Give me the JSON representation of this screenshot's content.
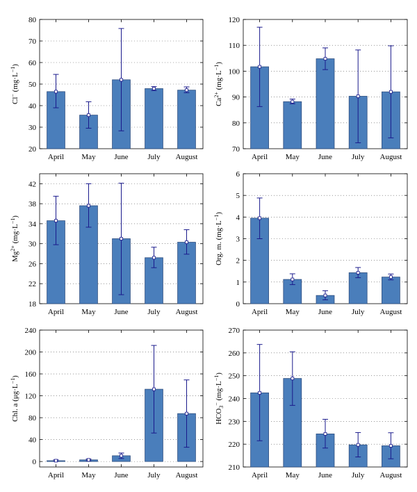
{
  "chart_data": [
    {
      "type": "bar",
      "id": "cl",
      "categories": [
        "April",
        "May",
        "June",
        "July",
        "August"
      ],
      "values": [
        46.5,
        35.6,
        52.0,
        47.9,
        47.2
      ],
      "errors": [
        [
          39.0,
          54.5
        ],
        [
          29.5,
          41.8
        ],
        [
          28.3,
          75.8
        ],
        [
          47.0,
          48.8
        ],
        [
          46.0,
          48.7
        ]
      ],
      "ylabel": "Cl⁻ (mg·L⁻¹)",
      "ylabel_parts": [
        [
          "Cl",
          ""
        ],
        [
          "−",
          "sup"
        ],
        [
          " (mg·L",
          ""
        ],
        [
          "−1",
          "sup"
        ],
        [
          ")",
          ""
        ]
      ],
      "ylim": [
        20,
        80
      ],
      "yticks": [
        20,
        30,
        40,
        50,
        60,
        70,
        80
      ],
      "grid": true,
      "color": "#4a7ebb"
    },
    {
      "type": "bar",
      "id": "ca",
      "categories": [
        "April",
        "May",
        "June",
        "July",
        "August"
      ],
      "values": [
        101.7,
        88.2,
        104.8,
        90.3,
        92.0
      ],
      "errors": [
        [
          86.3,
          117.0
        ],
        [
          87.4,
          89.2
        ],
        [
          100.6,
          109.0
        ],
        [
          72.3,
          108.2
        ],
        [
          74.2,
          109.8
        ]
      ],
      "ylabel": "Ca²⁺ (mg·L⁻¹)",
      "ylabel_parts": [
        [
          "Ca",
          ""
        ],
        [
          "2+",
          "sup"
        ],
        [
          " (mg·L",
          ""
        ],
        [
          "−1",
          "sup"
        ],
        [
          ")",
          ""
        ]
      ],
      "ylim": [
        70,
        120
      ],
      "yticks": [
        70,
        80,
        90,
        100,
        110,
        120
      ],
      "grid": true,
      "color": "#4a7ebb"
    },
    {
      "type": "bar",
      "id": "mg",
      "categories": [
        "April",
        "May",
        "June",
        "July",
        "August"
      ],
      "values": [
        34.6,
        37.6,
        31.0,
        27.2,
        30.3
      ],
      "errors": [
        [
          29.8,
          39.5
        ],
        [
          33.3,
          42.0
        ],
        [
          19.8,
          42.1
        ],
        [
          25.2,
          29.3
        ],
        [
          27.9,
          32.8
        ]
      ],
      "ylabel": "Mg²⁺ (mg·L⁻¹)",
      "ylabel_parts": [
        [
          "Mg",
          ""
        ],
        [
          "2+",
          "sup"
        ],
        [
          " (mg·L",
          ""
        ],
        [
          "−1",
          "sup"
        ],
        [
          ")",
          ""
        ]
      ],
      "ylim": [
        18,
        44
      ],
      "yticks": [
        18,
        22,
        26,
        30,
        34,
        38,
        42
      ],
      "grid": true,
      "color": "#4a7ebb"
    },
    {
      "type": "bar",
      "id": "orgm",
      "categories": [
        "April",
        "May",
        "June",
        "July",
        "August"
      ],
      "values": [
        3.95,
        1.12,
        0.38,
        1.43,
        1.23
      ],
      "errors": [
        [
          3.0,
          4.88
        ],
        [
          0.88,
          1.38
        ],
        [
          0.18,
          0.6
        ],
        [
          1.2,
          1.67
        ],
        [
          1.1,
          1.37
        ]
      ],
      "ylabel": "Org. m. (mg·L⁻¹)",
      "ylabel_parts": [
        [
          "Org. m. (mg·L",
          ""
        ],
        [
          "−1",
          "sup"
        ],
        [
          ")",
          ""
        ]
      ],
      "ylim": [
        0,
        6
      ],
      "yticks": [
        0,
        1,
        2,
        3,
        4,
        5,
        6
      ],
      "grid": true,
      "color": "#4a7ebb"
    },
    {
      "type": "bar",
      "id": "chla",
      "categories": [
        "April",
        "May",
        "June",
        "July",
        "August"
      ],
      "values": [
        1.5,
        3.0,
        10.5,
        132.0,
        87.5
      ],
      "errors": [
        [
          0.0,
          3.0
        ],
        [
          1.5,
          4.5
        ],
        [
          5.5,
          15.5
        ],
        [
          52.0,
          212.0
        ],
        [
          26.0,
          149.0
        ]
      ],
      "ylabel": "Chl. a (μg·L⁻¹)",
      "ylabel_parts": [
        [
          "Chl. a (μg·L",
          ""
        ],
        [
          "−1",
          "sup"
        ],
        [
          ")",
          ""
        ]
      ],
      "ylim": [
        -10,
        240
      ],
      "yticks": [
        0,
        40,
        80,
        120,
        160,
        200,
        240
      ],
      "grid": true,
      "color": "#4a7ebb"
    },
    {
      "type": "bar",
      "id": "hco3",
      "categories": [
        "April",
        "May",
        "June",
        "July",
        "August"
      ],
      "values": [
        242.5,
        248.8,
        224.5,
        219.7,
        219.3
      ],
      "errors": [
        [
          221.5,
          263.7
        ],
        [
          237.0,
          260.5
        ],
        [
          218.3,
          230.9
        ],
        [
          214.4,
          225.1
        ],
        [
          213.6,
          225.0
        ]
      ],
      "ylabel": "HCO₃⁻ (mg·L⁻¹)",
      "ylabel_parts": [
        [
          "HCO",
          ""
        ],
        [
          "3",
          "sub"
        ],
        [
          "−",
          "sup"
        ],
        [
          " (mg·L",
          ""
        ],
        [
          "−1",
          "sup"
        ],
        [
          ")",
          ""
        ]
      ],
      "ylim": [
        210,
        270
      ],
      "yticks": [
        210,
        220,
        230,
        240,
        250,
        260,
        270
      ],
      "grid": true,
      "color": "#4a7ebb"
    }
  ]
}
